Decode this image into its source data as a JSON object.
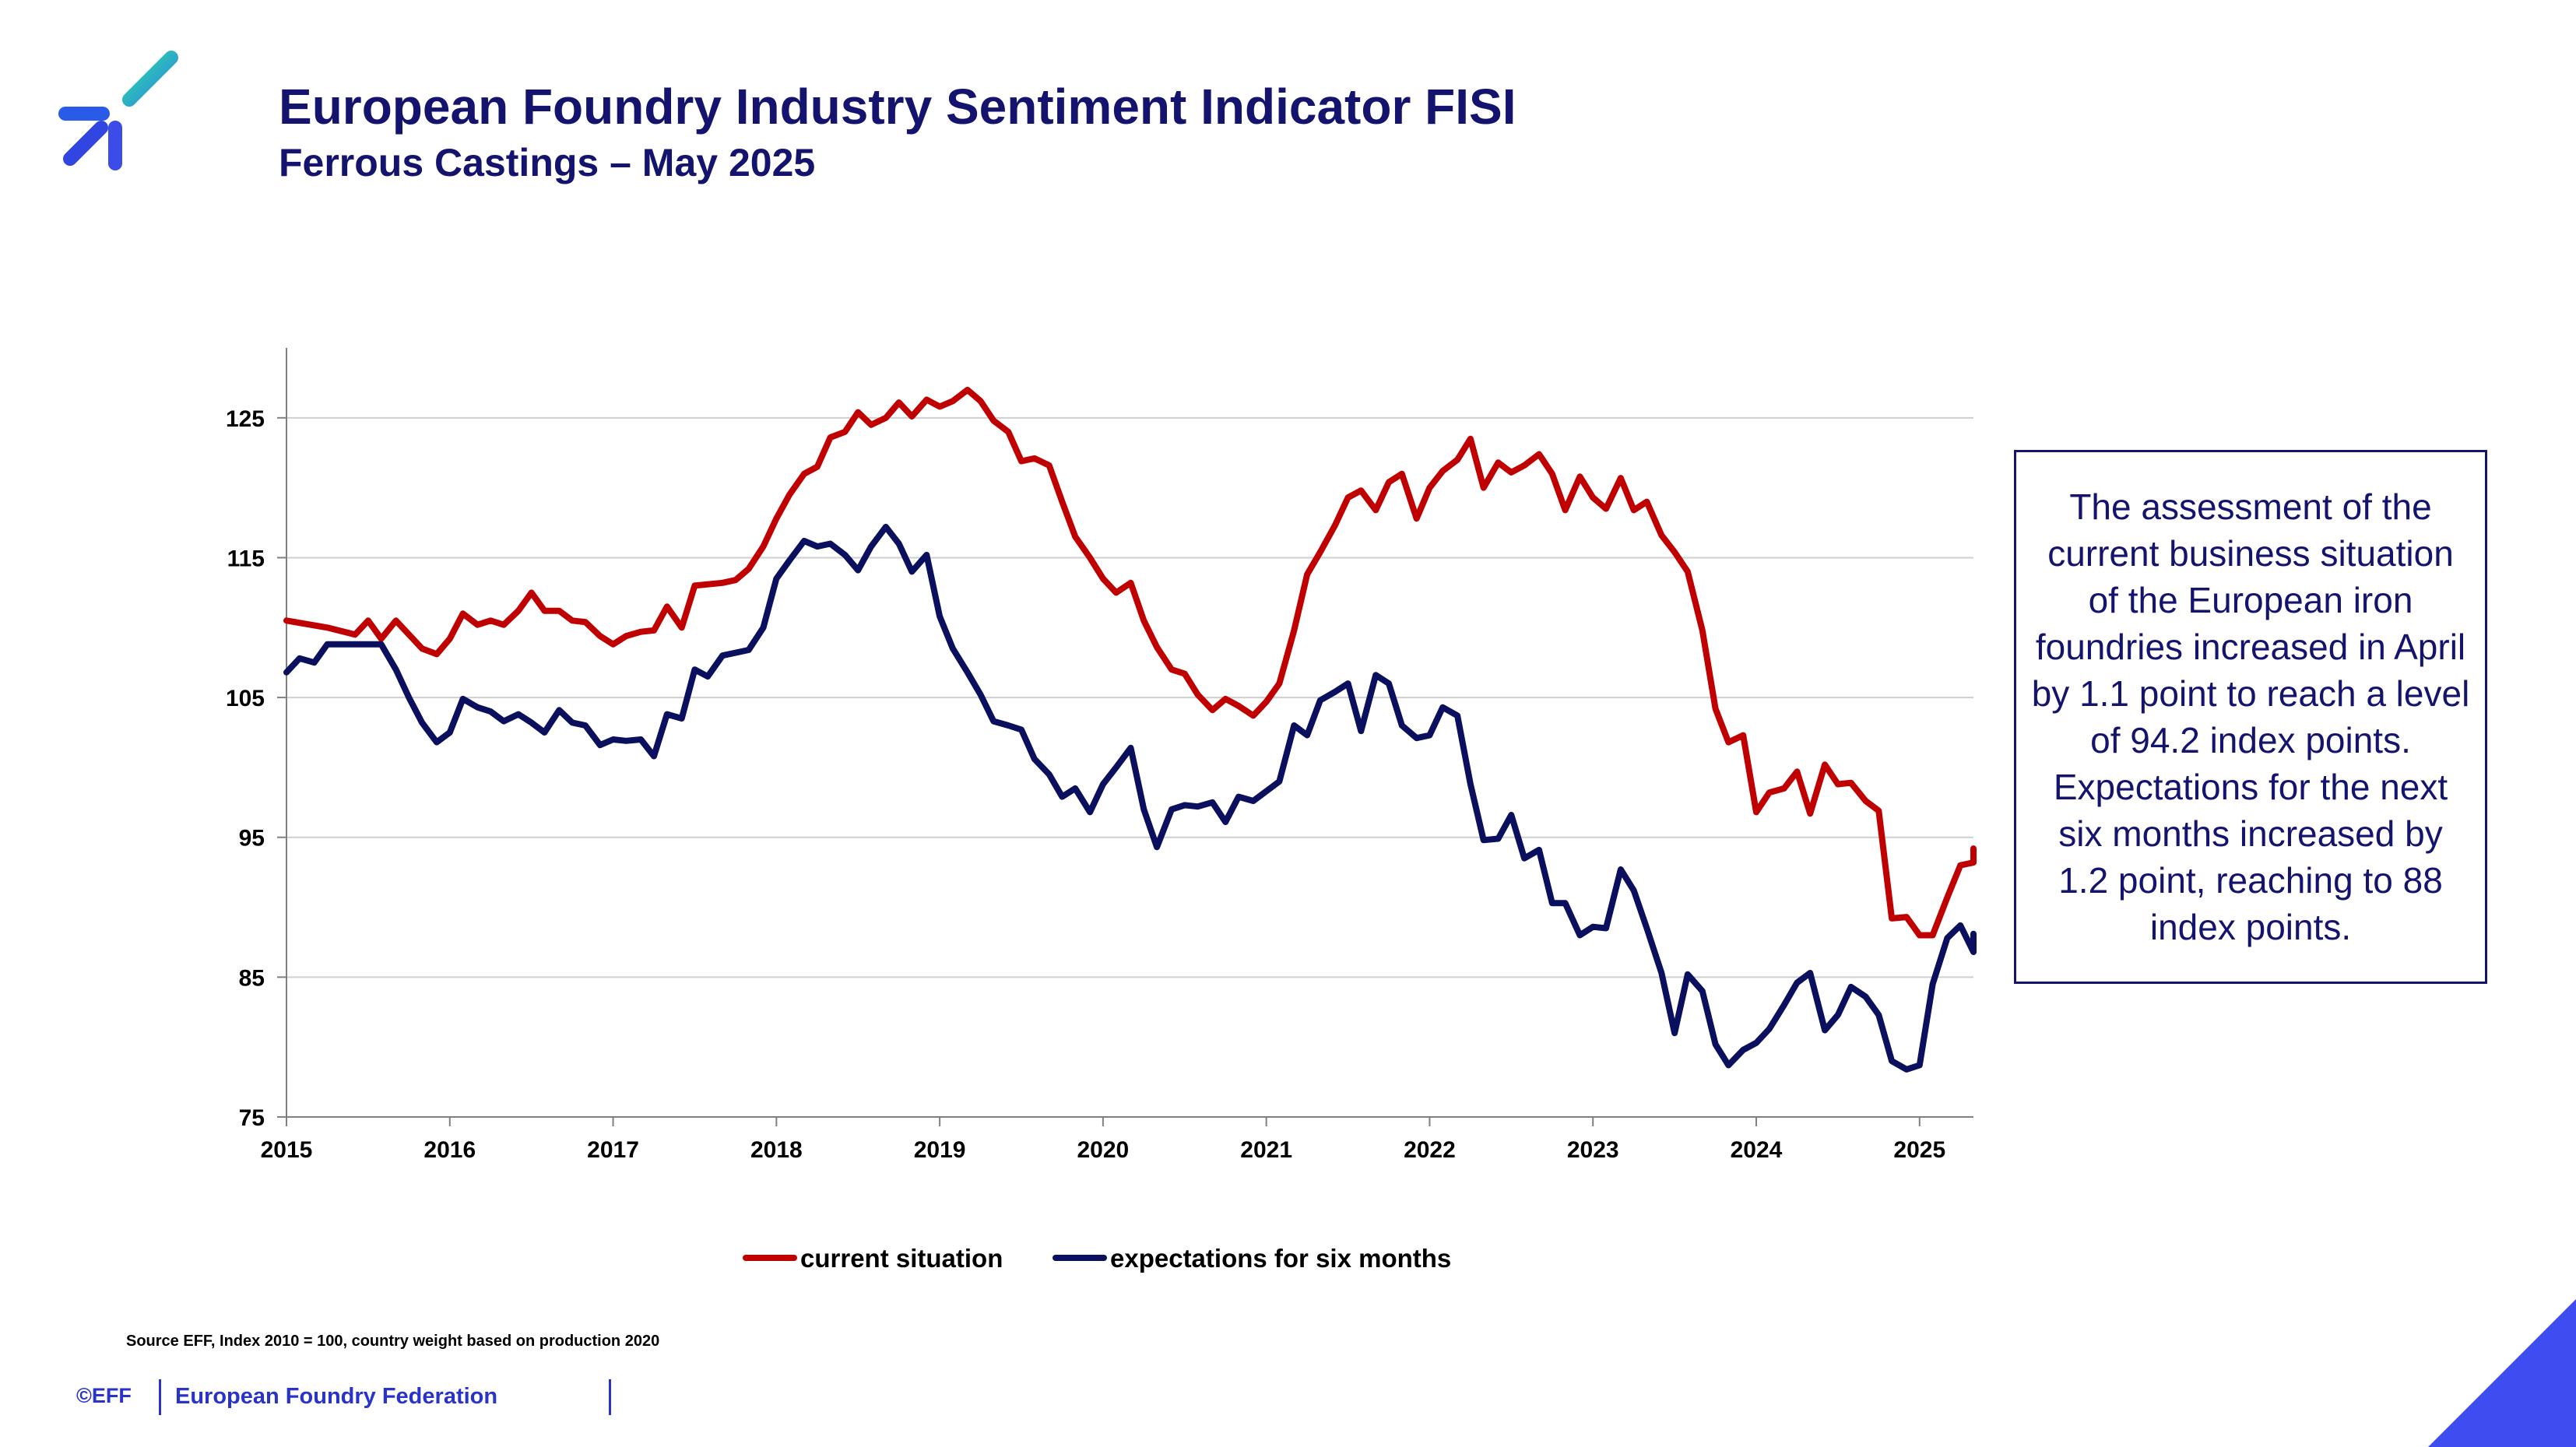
{
  "header": {
    "title": "European Foundry Industry Sentiment Indicator FISI",
    "subtitle": "Ferrous Castings – May 2025"
  },
  "note": "The assessment of the current business situation of the European iron foundries increased in April by 1.1 point to reach a level of 94.2 index points. Expectations for the next six months increased by 1.2 point, reaching to 88 index points.",
  "footer": {
    "source": "Source EFF, Index 2010 = 100, country weight based on production 2020",
    "copyright": "©EFF",
    "federation": "European Foundry Federation"
  },
  "colors": {
    "current": "#c00000",
    "expectations": "#0a0f5e",
    "brand": "#2a33c8",
    "text": "#14146e"
  },
  "chart_data": {
    "type": "line",
    "x_unit": "year",
    "x_ticks": [
      2015,
      2016,
      2017,
      2018,
      2019,
      2020,
      2021,
      2022,
      2023,
      2024,
      2025
    ],
    "y_ticks": [
      75,
      85,
      95,
      105,
      115,
      125
    ],
    "xlim": [
      2015,
      2025.33
    ],
    "ylim": [
      75,
      130
    ],
    "grid": "horizontal",
    "legend_position": "bottom",
    "series": [
      {
        "name": "current situation",
        "color": "#c00000",
        "points": [
          [
            2015.0,
            110.5
          ],
          [
            2015.25,
            110
          ],
          [
            2015.42,
            109.5
          ],
          [
            2015.5,
            110.5
          ],
          [
            2015.58,
            109.2
          ],
          [
            2015.67,
            110.5
          ],
          [
            2015.83,
            108.5
          ],
          [
            2015.92,
            108.1
          ],
          [
            2016.0,
            109.2
          ],
          [
            2016.08,
            111
          ],
          [
            2016.17,
            110.2
          ],
          [
            2016.25,
            110.5
          ],
          [
            2016.33,
            110.2
          ],
          [
            2016.42,
            111.2
          ],
          [
            2016.5,
            112.5
          ],
          [
            2016.58,
            111.2
          ],
          [
            2016.67,
            111.2
          ],
          [
            2016.75,
            110.5
          ],
          [
            2016.83,
            110.4
          ],
          [
            2016.92,
            109.4
          ],
          [
            2017.0,
            108.8
          ],
          [
            2017.08,
            109.4
          ],
          [
            2017.17,
            109.7
          ],
          [
            2017.25,
            109.8
          ],
          [
            2017.33,
            111.5
          ],
          [
            2017.42,
            110
          ],
          [
            2017.5,
            113
          ],
          [
            2017.67,
            113.2
          ],
          [
            2017.75,
            113.4
          ],
          [
            2017.83,
            114.2
          ],
          [
            2017.92,
            115.8
          ],
          [
            2018.0,
            117.8
          ],
          [
            2018.08,
            119.5
          ],
          [
            2018.17,
            121
          ],
          [
            2018.25,
            121.5
          ],
          [
            2018.33,
            123.6
          ],
          [
            2018.42,
            124
          ],
          [
            2018.5,
            125.4
          ],
          [
            2018.58,
            124.5
          ],
          [
            2018.67,
            125
          ],
          [
            2018.75,
            126.1
          ],
          [
            2018.83,
            125.1
          ],
          [
            2018.92,
            126.3
          ],
          [
            2019.0,
            125.8
          ],
          [
            2019.08,
            126.2
          ],
          [
            2019.17,
            127
          ],
          [
            2019.25,
            126.2
          ],
          [
            2019.33,
            124.8
          ],
          [
            2019.42,
            124
          ],
          [
            2019.5,
            121.9
          ],
          [
            2019.58,
            122.1
          ],
          [
            2019.67,
            121.6
          ],
          [
            2019.75,
            119
          ],
          [
            2019.83,
            116.5
          ],
          [
            2019.92,
            115
          ],
          [
            2020.0,
            113.5
          ],
          [
            2020.08,
            112.5
          ],
          [
            2020.17,
            113.2
          ],
          [
            2020.25,
            110.5
          ],
          [
            2020.33,
            108.6
          ],
          [
            2020.42,
            107
          ],
          [
            2020.5,
            106.7
          ],
          [
            2020.58,
            105.2
          ],
          [
            2020.67,
            104.1
          ],
          [
            2020.75,
            104.9
          ],
          [
            2020.83,
            104.4
          ],
          [
            2020.92,
            103.7
          ],
          [
            2021.0,
            104.7
          ],
          [
            2021.08,
            106
          ],
          [
            2021.17,
            109.8
          ],
          [
            2021.25,
            113.8
          ],
          [
            2021.33,
            115.4
          ],
          [
            2021.42,
            117.3
          ],
          [
            2021.5,
            119.3
          ],
          [
            2021.58,
            119.8
          ],
          [
            2021.67,
            118.4
          ],
          [
            2021.75,
            120.4
          ],
          [
            2021.83,
            121
          ],
          [
            2021.92,
            117.8
          ],
          [
            2022.0,
            120
          ],
          [
            2022.08,
            121.2
          ],
          [
            2022.17,
            122
          ],
          [
            2022.25,
            123.5
          ],
          [
            2022.33,
            120
          ],
          [
            2022.42,
            121.8
          ],
          [
            2022.5,
            121.1
          ],
          [
            2022.58,
            121.6
          ],
          [
            2022.67,
            122.4
          ],
          [
            2022.75,
            121
          ],
          [
            2022.83,
            118.4
          ],
          [
            2022.92,
            120.8
          ],
          [
            2023.0,
            119.3
          ],
          [
            2023.08,
            118.5
          ],
          [
            2023.17,
            120.7
          ],
          [
            2023.25,
            118.4
          ],
          [
            2023.33,
            119
          ],
          [
            2023.42,
            116.6
          ],
          [
            2023.5,
            115.4
          ],
          [
            2023.58,
            114
          ],
          [
            2023.67,
            109.8
          ],
          [
            2023.75,
            104.2
          ],
          [
            2023.83,
            101.8
          ],
          [
            2023.92,
            102.3
          ],
          [
            2024.0,
            96.8
          ],
          [
            2024.08,
            98.2
          ],
          [
            2024.17,
            98.5
          ],
          [
            2024.25,
            99.7
          ],
          [
            2024.33,
            96.7
          ],
          [
            2024.42,
            100.2
          ],
          [
            2024.5,
            98.8
          ],
          [
            2024.58,
            98.9
          ],
          [
            2024.67,
            97.6
          ],
          [
            2024.75,
            96.9
          ],
          [
            2024.83,
            89.2
          ],
          [
            2024.92,
            89.3
          ],
          [
            2025.0,
            88
          ],
          [
            2025.08,
            88
          ],
          [
            2025.17,
            90.7
          ],
          [
            2025.25,
            93
          ],
          [
            2025.33,
            93.2
          ],
          [
            2025.42,
            94.2
          ]
        ]
      },
      {
        "name": "expectations for six months",
        "color": "#0a0f5e",
        "points": [
          [
            2015.0,
            106.8
          ],
          [
            2015.08,
            107.8
          ],
          [
            2015.17,
            107.5
          ],
          [
            2015.25,
            108.8
          ],
          [
            2015.58,
            108.8
          ],
          [
            2015.67,
            107
          ],
          [
            2015.75,
            105
          ],
          [
            2015.83,
            103.2
          ],
          [
            2015.92,
            101.8
          ],
          [
            2016.0,
            102.5
          ],
          [
            2016.08,
            104.9
          ],
          [
            2016.17,
            104.3
          ],
          [
            2016.25,
            104
          ],
          [
            2016.33,
            103.3
          ],
          [
            2016.42,
            103.8
          ],
          [
            2016.5,
            103.2
          ],
          [
            2016.58,
            102.5
          ],
          [
            2016.67,
            104.1
          ],
          [
            2016.75,
            103.2
          ],
          [
            2016.83,
            103
          ],
          [
            2016.92,
            101.6
          ],
          [
            2017.0,
            102
          ],
          [
            2017.08,
            101.9
          ],
          [
            2017.17,
            102
          ],
          [
            2017.25,
            100.8
          ],
          [
            2017.33,
            103.8
          ],
          [
            2017.42,
            103.5
          ],
          [
            2017.5,
            107
          ],
          [
            2017.58,
            106.5
          ],
          [
            2017.67,
            108
          ],
          [
            2017.75,
            108.2
          ],
          [
            2017.83,
            108.4
          ],
          [
            2017.92,
            110
          ],
          [
            2018.0,
            113.5
          ],
          [
            2018.08,
            114.8
          ],
          [
            2018.17,
            116.2
          ],
          [
            2018.25,
            115.8
          ],
          [
            2018.33,
            116
          ],
          [
            2018.42,
            115.2
          ],
          [
            2018.5,
            114.1
          ],
          [
            2018.58,
            115.8
          ],
          [
            2018.67,
            117.2
          ],
          [
            2018.75,
            116
          ],
          [
            2018.83,
            114
          ],
          [
            2018.92,
            115.2
          ],
          [
            2019.0,
            110.8
          ],
          [
            2019.08,
            108.5
          ],
          [
            2019.17,
            106.8
          ],
          [
            2019.25,
            105.2
          ],
          [
            2019.33,
            103.3
          ],
          [
            2019.42,
            103
          ],
          [
            2019.5,
            102.7
          ],
          [
            2019.58,
            100.6
          ],
          [
            2019.67,
            99.5
          ],
          [
            2019.75,
            97.9
          ],
          [
            2019.83,
            98.5
          ],
          [
            2019.92,
            96.8
          ],
          [
            2020.0,
            98.8
          ],
          [
            2020.08,
            100
          ],
          [
            2020.17,
            101.4
          ],
          [
            2020.25,
            97
          ],
          [
            2020.33,
            94.3
          ],
          [
            2020.42,
            97
          ],
          [
            2020.5,
            97.3
          ],
          [
            2020.58,
            97.2
          ],
          [
            2020.67,
            97.5
          ],
          [
            2020.75,
            96.1
          ],
          [
            2020.83,
            97.9
          ],
          [
            2020.92,
            97.6
          ],
          [
            2021.0,
            98.3
          ],
          [
            2021.08,
            99
          ],
          [
            2021.17,
            103
          ],
          [
            2021.25,
            102.3
          ],
          [
            2021.33,
            104.8
          ],
          [
            2021.42,
            105.4
          ],
          [
            2021.5,
            106
          ],
          [
            2021.58,
            102.6
          ],
          [
            2021.67,
            106.6
          ],
          [
            2021.75,
            106
          ],
          [
            2021.83,
            103
          ],
          [
            2021.92,
            102.1
          ],
          [
            2022.0,
            102.3
          ],
          [
            2022.08,
            104.3
          ],
          [
            2022.17,
            103.7
          ],
          [
            2022.25,
            98.8
          ],
          [
            2022.33,
            94.8
          ],
          [
            2022.42,
            94.9
          ],
          [
            2022.5,
            96.6
          ],
          [
            2022.58,
            93.5
          ],
          [
            2022.67,
            94.1
          ],
          [
            2022.75,
            90.3
          ],
          [
            2022.83,
            90.3
          ],
          [
            2022.92,
            88
          ],
          [
            2023.0,
            88.6
          ],
          [
            2023.08,
            88.5
          ],
          [
            2023.17,
            92.7
          ],
          [
            2023.25,
            91.2
          ],
          [
            2023.33,
            88.5
          ],
          [
            2023.42,
            85.3
          ],
          [
            2023.5,
            81
          ],
          [
            2023.58,
            85.2
          ],
          [
            2023.67,
            84
          ],
          [
            2023.75,
            80.2
          ],
          [
            2023.83,
            78.7
          ],
          [
            2023.92,
            79.8
          ],
          [
            2024.0,
            80.3
          ],
          [
            2024.08,
            81.3
          ],
          [
            2024.17,
            83
          ],
          [
            2024.25,
            84.6
          ],
          [
            2024.33,
            85.3
          ],
          [
            2024.42,
            81.2
          ],
          [
            2024.5,
            82.3
          ],
          [
            2024.58,
            84.3
          ],
          [
            2024.67,
            83.6
          ],
          [
            2024.75,
            82.3
          ],
          [
            2024.83,
            79
          ],
          [
            2024.92,
            78.4
          ],
          [
            2025.0,
            78.7
          ],
          [
            2025.08,
            84.5
          ],
          [
            2025.17,
            87.8
          ],
          [
            2025.25,
            88.7
          ],
          [
            2025.33,
            86.8
          ],
          [
            2025.42,
            88.1
          ]
        ]
      }
    ]
  }
}
